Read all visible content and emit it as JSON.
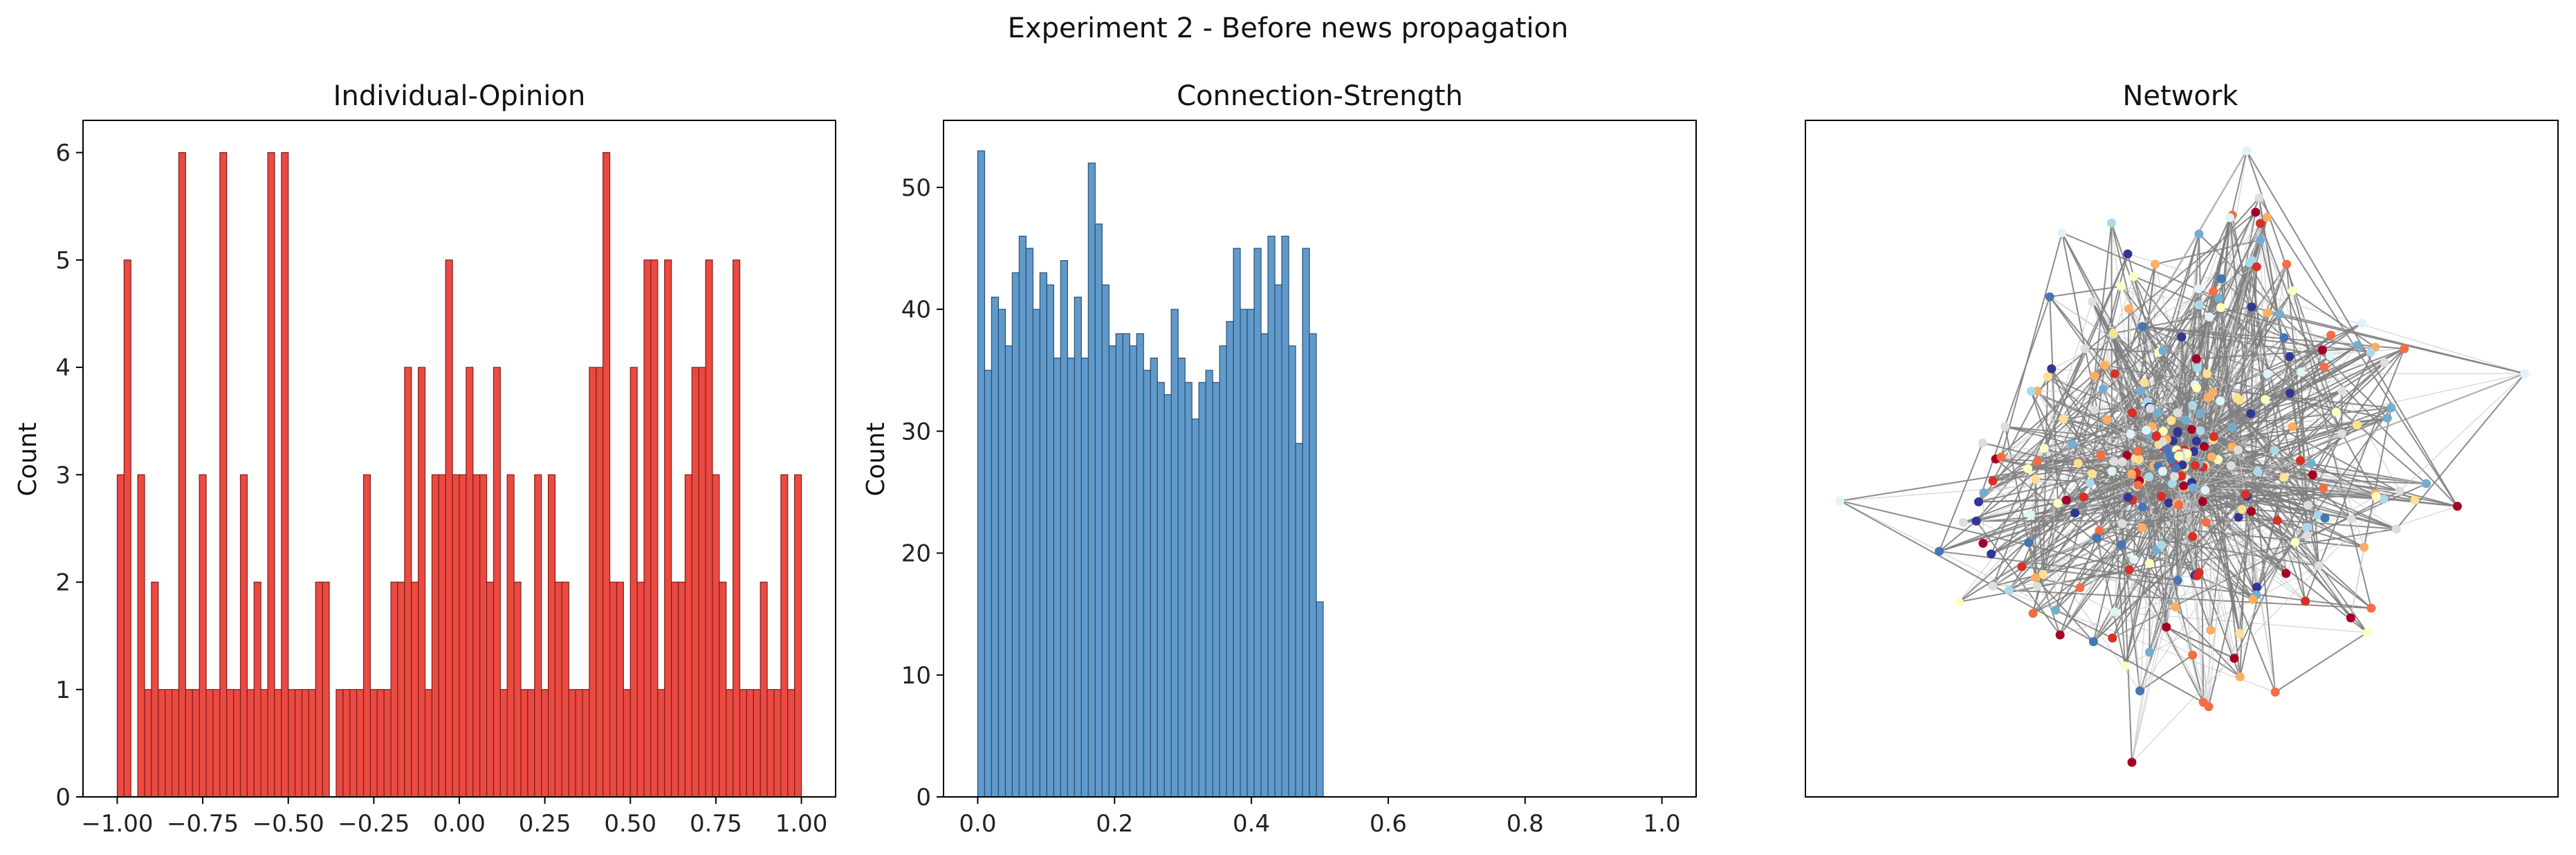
{
  "figure": {
    "title": "Experiment 2 - Before news propagation"
  },
  "chart_data": [
    {
      "type": "bar",
      "title": "Individual-Opinion",
      "xlabel": "",
      "ylabel": "Count",
      "xlim": [
        -1.1,
        1.1
      ],
      "ylim": [
        0,
        6.3
      ],
      "xticks": [
        -1.0,
        -0.75,
        -0.5,
        -0.25,
        0.0,
        0.25,
        0.5,
        0.75,
        1.0
      ],
      "xtick_labels": [
        "−1.00",
        "−0.75",
        "−0.50",
        "−0.25",
        "0.00",
        "0.25",
        "0.50",
        "0.75",
        "1.00"
      ],
      "yticks": [
        0,
        1,
        2,
        3,
        4,
        5,
        6
      ],
      "ytick_labels": [
        "0",
        "1",
        "2",
        "3",
        "4",
        "5",
        "6"
      ],
      "bin_range": [
        -1.0,
        1.0
      ],
      "values": [
        3,
        5,
        0,
        3,
        1,
        2,
        1,
        1,
        1,
        6,
        1,
        1,
        3,
        1,
        1,
        6,
        1,
        1,
        3,
        1,
        2,
        1,
        6,
        1,
        6,
        1,
        1,
        1,
        1,
        2,
        2,
        0,
        1,
        1,
        1,
        1,
        3,
        1,
        1,
        1,
        2,
        2,
        4,
        2,
        4,
        1,
        3,
        3,
        5,
        3,
        3,
        4,
        3,
        3,
        2,
        4,
        1,
        3,
        2,
        1,
        1,
        3,
        1,
        3,
        2,
        2,
        1,
        1,
        1,
        4,
        4,
        6,
        2,
        2,
        1,
        4,
        2,
        5,
        5,
        1,
        5,
        2,
        2,
        3,
        4,
        4,
        5,
        3,
        2,
        1,
        5,
        1,
        1,
        1,
        2,
        1,
        1,
        3,
        1,
        3
      ],
      "color": "#e8362e"
    },
    {
      "type": "bar",
      "title": "Connection-Strength",
      "xlabel": "",
      "ylabel": "Count",
      "xlim": [
        -0.05,
        1.05
      ],
      "ylim": [
        0,
        55.5
      ],
      "xticks": [
        0.0,
        0.2,
        0.4,
        0.6,
        0.8,
        1.0
      ],
      "xtick_labels": [
        "0.0",
        "0.2",
        "0.4",
        "0.6",
        "0.8",
        "1.0"
      ],
      "yticks": [
        0,
        10,
        20,
        30,
        40,
        50
      ],
      "ytick_labels": [
        "0",
        "10",
        "20",
        "30",
        "40",
        "50"
      ],
      "bin_range": [
        0.0,
        0.505
      ],
      "values": [
        53,
        35,
        41,
        40,
        37,
        43,
        46,
        45,
        40,
        43,
        42,
        36,
        44,
        36,
        41,
        36,
        52,
        47,
        42,
        37,
        38,
        38,
        37,
        38,
        35,
        36,
        34,
        33,
        40,
        36,
        34,
        31,
        34,
        35,
        34,
        37,
        39,
        45,
        40,
        40,
        45,
        38,
        46,
        42,
        46,
        37,
        29,
        45,
        38,
        16
      ],
      "color": "#4f8fc6"
    },
    {
      "type": "network",
      "title": "Network",
      "xlabel": "",
      "ylabel": "",
      "node_count": 300,
      "node_colors": [
        "#a50026",
        "#d73027",
        "#f46d43",
        "#fdae61",
        "#fee090",
        "#ffffbf",
        "#e0f3f8",
        "#abd9e9",
        "#74add1",
        "#4575b4",
        "#313695",
        "#dddddd"
      ],
      "edge_color": "#7f7f7f"
    }
  ]
}
